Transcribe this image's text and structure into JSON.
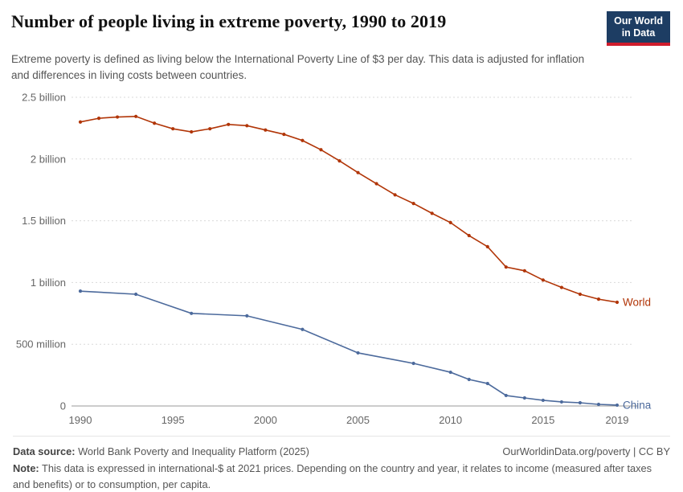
{
  "header": {
    "title": "Number of people living in extreme poverty, 1990 to 2019",
    "subtitle": "Extreme poverty is defined as living below the International Poverty Line of $3 per day. This data is adjusted for inflation and differences in living costs between countries.",
    "logo_line1": "Our World",
    "logo_line2": "in Data"
  },
  "chart_data": {
    "type": "line",
    "title": "Number of people living in extreme poverty, 1990 to 2019",
    "unit": "people (millions)",
    "x_range": [
      1990,
      2019
    ],
    "ylim": [
      0,
      2500
    ],
    "grid": "dashed-horizontal",
    "legend_position": "end-of-line-labels",
    "xticks": [
      1990,
      1995,
      2000,
      2005,
      2010,
      2015,
      2019
    ],
    "yticks": [
      {
        "value": 0,
        "label": "0"
      },
      {
        "value": 500,
        "label": "500 million"
      },
      {
        "value": 1000,
        "label": "1 billion"
      },
      {
        "value": 1500,
        "label": "1.5 billion"
      },
      {
        "value": 2000,
        "label": "2 billion"
      },
      {
        "value": 2500,
        "label": "2.5 billion"
      }
    ],
    "series": [
      {
        "name": "World",
        "color": "#B13507",
        "x": [
          1990,
          1991,
          1992,
          1993,
          1994,
          1995,
          1996,
          1997,
          1998,
          1999,
          2000,
          2001,
          2002,
          2003,
          2004,
          2005,
          2006,
          2007,
          2008,
          2009,
          2010,
          2011,
          2012,
          2013,
          2014,
          2015,
          2016,
          2017,
          2018,
          2019
        ],
        "values": [
          2300,
          2330,
          2340,
          2345,
          2290,
          2245,
          2220,
          2245,
          2280,
          2270,
          2235,
          2200,
          2150,
          2075,
          1985,
          1890,
          1800,
          1710,
          1640,
          1560,
          1485,
          1380,
          1290,
          1125,
          1095,
          1020,
          960,
          905,
          865,
          840
        ]
      },
      {
        "name": "China",
        "color": "#4C6A9C",
        "x": [
          1990,
          1993,
          1996,
          1999,
          2002,
          2005,
          2008,
          2010,
          2011,
          2012,
          2013,
          2014,
          2015,
          2016,
          2017,
          2018,
          2019
        ],
        "values": [
          930,
          905,
          750,
          730,
          620,
          430,
          345,
          273,
          215,
          182,
          85,
          65,
          46,
          33,
          26,
          13,
          7
        ]
      }
    ]
  },
  "footer": {
    "source_label": "Data source:",
    "source_text": " World Bank Poverty and Inequality Platform (2025)",
    "link": "OurWorldinData.org/poverty | CC BY",
    "note_label": "Note:",
    "note_text": " This data is expressed in international-$ at 2021 prices. Depending on the country and year, it relates to income (measured after taxes and benefits) or to consumption, per capita."
  }
}
